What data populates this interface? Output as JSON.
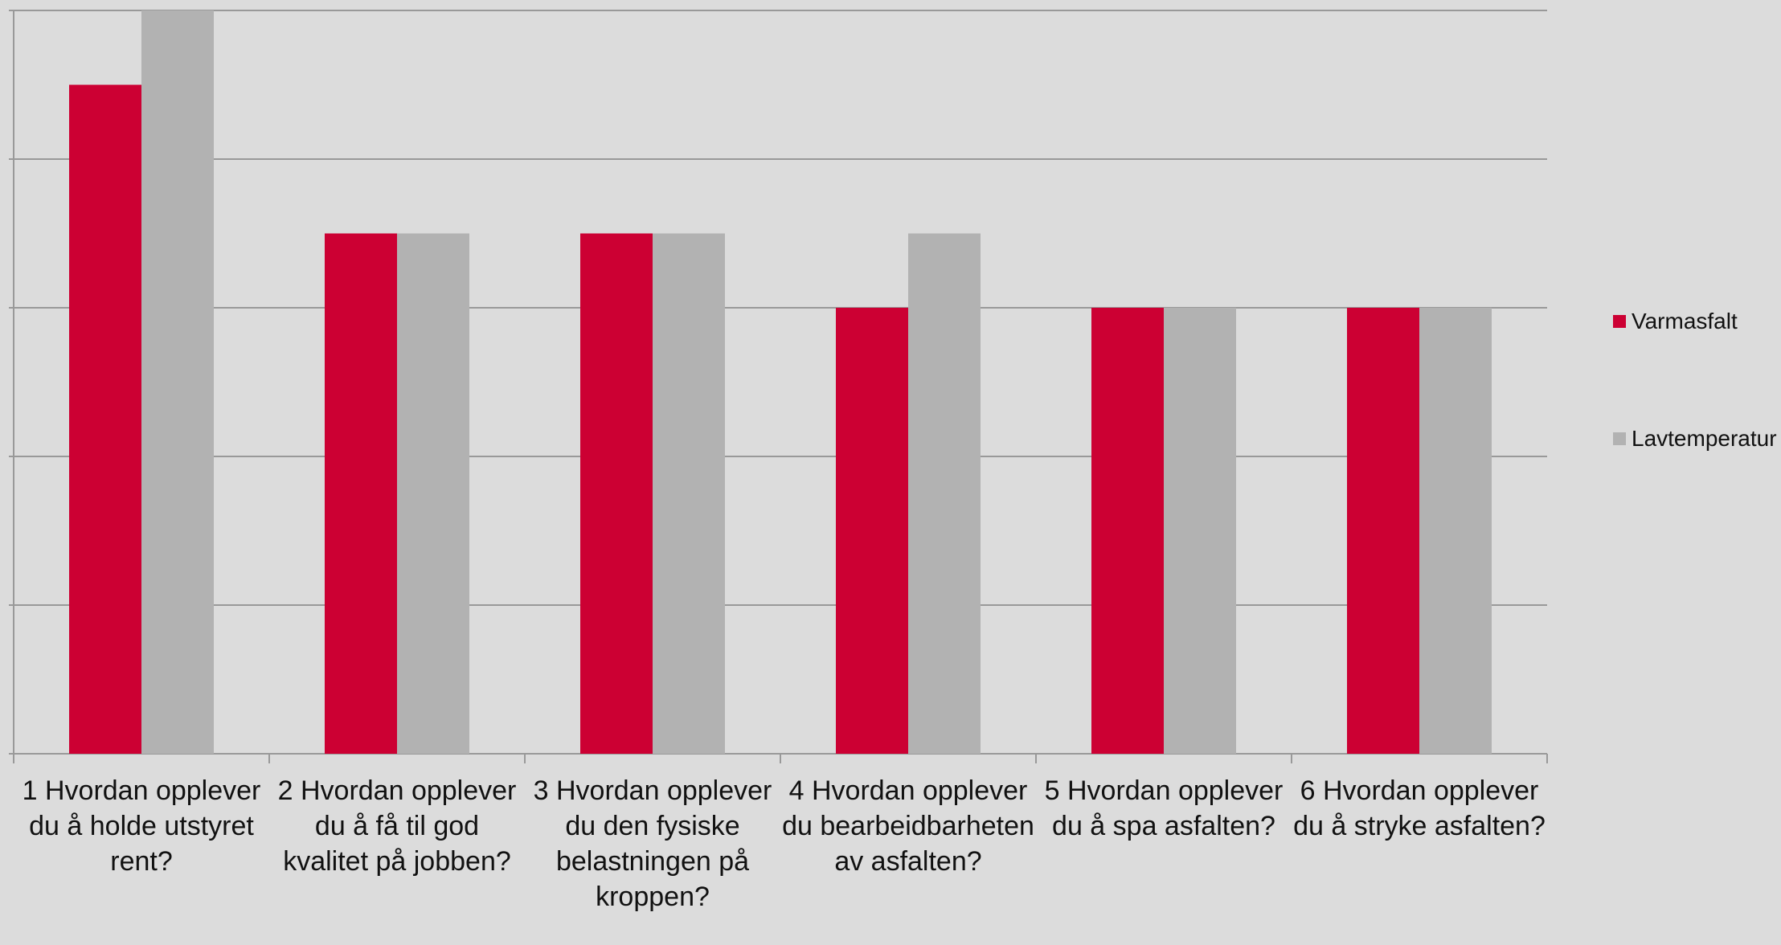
{
  "chart_data": {
    "type": "bar",
    "categories": [
      "1 Hvordan opplever du å holde utstyret rent?",
      "2 Hvordan opplever du å få til god kvalitet på jobben?",
      "3 Hvordan opplever du den fysiske belastningen på kroppen?",
      "4 Hvordan opplever du bearbeidbarheten av asfalten?",
      "5 Hvordan opplever du å spa asfalten?",
      "6 Hvordan opplever du å stryke asfalten?"
    ],
    "series": [
      {
        "name": "Varmasfalt",
        "color": "#cc0033",
        "values": [
          4.5,
          3.5,
          3.5,
          3,
          3,
          3
        ]
      },
      {
        "name": "Lavtemperatur",
        "color": "#b2b2b2",
        "values": [
          5,
          3.5,
          3.5,
          3.5,
          3,
          3
        ]
      }
    ],
    "ylim": [
      0,
      5
    ],
    "yticks": [
      0,
      1,
      2,
      3,
      4,
      5
    ],
    "grid": true,
    "legend": "right"
  }
}
